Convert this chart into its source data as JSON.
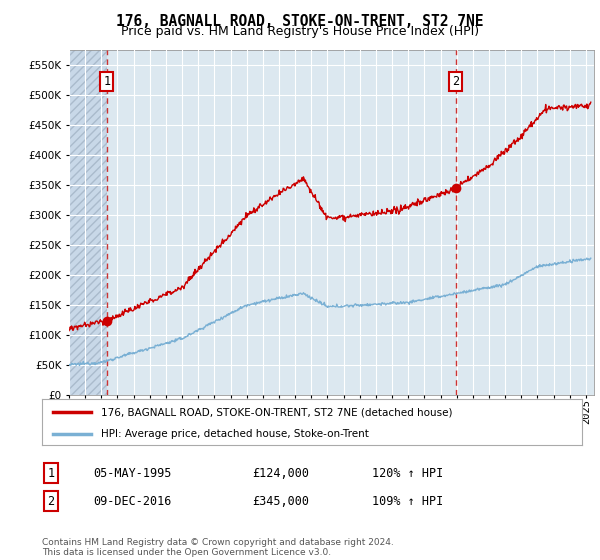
{
  "title": "176, BAGNALL ROAD, STOKE-ON-TRENT, ST2 7NE",
  "subtitle": "Price paid vs. HM Land Registry's House Price Index (HPI)",
  "ylim": [
    0,
    575000
  ],
  "yticks": [
    0,
    50000,
    100000,
    150000,
    200000,
    250000,
    300000,
    350000,
    400000,
    450000,
    500000,
    550000
  ],
  "xlim_start": 1993.0,
  "xlim_end": 2025.5,
  "point1_x": 1995.35,
  "point1_y": 124000,
  "point1_label": "1",
  "point1_date": "05-MAY-1995",
  "point1_price": "£124,000",
  "point1_hpi": "120% ↑ HPI",
  "point2_x": 2016.93,
  "point2_y": 345000,
  "point2_label": "2",
  "point2_date": "09-DEC-2016",
  "point2_price": "£345,000",
  "point2_hpi": "109% ↑ HPI",
  "line1_color": "#cc0000",
  "line2_color": "#7ab0d4",
  "background_color": "#ffffff",
  "plot_bg_color": "#dce8f0",
  "grid_color": "#ffffff",
  "legend_label1": "176, BAGNALL ROAD, STOKE-ON-TRENT, ST2 7NE (detached house)",
  "legend_label2": "HPI: Average price, detached house, Stoke-on-Trent",
  "footer": "Contains HM Land Registry data © Crown copyright and database right 2024.\nThis data is licensed under the Open Government Licence v3.0.",
  "title_fontsize": 10.5,
  "subtitle_fontsize": 9,
  "tick_fontsize": 7.5
}
